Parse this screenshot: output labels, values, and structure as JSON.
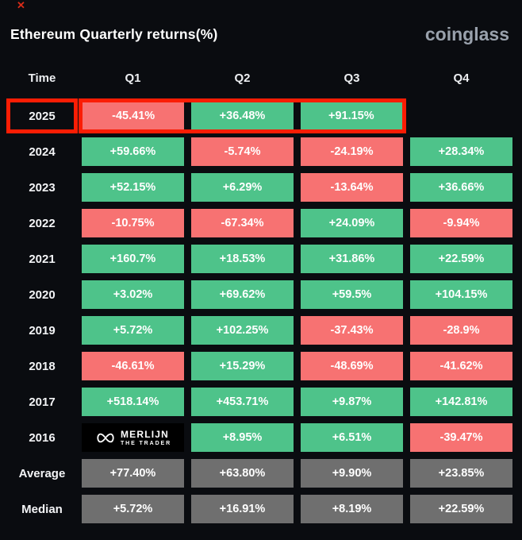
{
  "window": {
    "close_icon": "✕"
  },
  "header": {
    "title": "Ethereum Quarterly returns(%)",
    "brand": "coinglass"
  },
  "table": {
    "columns": [
      "Time",
      "Q1",
      "Q2",
      "Q3",
      "Q4"
    ],
    "rows": [
      {
        "time": "2025",
        "highlight": true,
        "cells": [
          {
            "value": "-45.41%",
            "type": "negative"
          },
          {
            "value": "+36.48%",
            "type": "positive"
          },
          {
            "value": "+91.15%",
            "type": "positive"
          },
          {
            "value": "",
            "type": "empty"
          }
        ]
      },
      {
        "time": "2024",
        "cells": [
          {
            "value": "+59.66%",
            "type": "positive"
          },
          {
            "value": "-5.74%",
            "type": "negative"
          },
          {
            "value": "-24.19%",
            "type": "negative"
          },
          {
            "value": "+28.34%",
            "type": "positive"
          }
        ]
      },
      {
        "time": "2023",
        "cells": [
          {
            "value": "+52.15%",
            "type": "positive"
          },
          {
            "value": "+6.29%",
            "type": "positive"
          },
          {
            "value": "-13.64%",
            "type": "negative"
          },
          {
            "value": "+36.66%",
            "type": "positive"
          }
        ]
      },
      {
        "time": "2022",
        "cells": [
          {
            "value": "-10.75%",
            "type": "negative"
          },
          {
            "value": "-67.34%",
            "type": "negative"
          },
          {
            "value": "+24.09%",
            "type": "positive"
          },
          {
            "value": "-9.94%",
            "type": "negative"
          }
        ]
      },
      {
        "time": "2021",
        "cells": [
          {
            "value": "+160.7%",
            "type": "positive"
          },
          {
            "value": "+18.53%",
            "type": "positive"
          },
          {
            "value": "+31.86%",
            "type": "positive"
          },
          {
            "value": "+22.59%",
            "type": "positive"
          }
        ]
      },
      {
        "time": "2020",
        "cells": [
          {
            "value": "+3.02%",
            "type": "positive"
          },
          {
            "value": "+69.62%",
            "type": "positive"
          },
          {
            "value": "+59.5%",
            "type": "positive"
          },
          {
            "value": "+104.15%",
            "type": "positive"
          }
        ]
      },
      {
        "time": "2019",
        "cells": [
          {
            "value": "+5.72%",
            "type": "positive"
          },
          {
            "value": "+102.25%",
            "type": "positive"
          },
          {
            "value": "-37.43%",
            "type": "negative"
          },
          {
            "value": "-28.9%",
            "type": "negative"
          }
        ]
      },
      {
        "time": "2018",
        "cells": [
          {
            "value": "-46.61%",
            "type": "negative"
          },
          {
            "value": "+15.29%",
            "type": "positive"
          },
          {
            "value": "-48.69%",
            "type": "negative"
          },
          {
            "value": "-41.62%",
            "type": "negative"
          }
        ]
      },
      {
        "time": "2017",
        "cells": [
          {
            "value": "+518.14%",
            "type": "positive"
          },
          {
            "value": "+453.71%",
            "type": "positive"
          },
          {
            "value": "+9.87%",
            "type": "positive"
          },
          {
            "value": "+142.81%",
            "type": "positive"
          }
        ]
      },
      {
        "time": "2016",
        "cells": [
          {
            "value": "",
            "type": "logo"
          },
          {
            "value": "+8.95%",
            "type": "positive"
          },
          {
            "value": "+6.51%",
            "type": "positive"
          },
          {
            "value": "-39.47%",
            "type": "negative"
          }
        ]
      },
      {
        "time": "Average",
        "cells": [
          {
            "value": "+77.40%",
            "type": "neutral"
          },
          {
            "value": "+63.80%",
            "type": "neutral"
          },
          {
            "value": "+9.90%",
            "type": "neutral"
          },
          {
            "value": "+23.85%",
            "type": "neutral"
          }
        ]
      },
      {
        "time": "Median",
        "cells": [
          {
            "value": "+5.72%",
            "type": "neutral"
          },
          {
            "value": "+16.91%",
            "type": "neutral"
          },
          {
            "value": "+8.19%",
            "type": "neutral"
          },
          {
            "value": "+22.59%",
            "type": "neutral"
          }
        ]
      }
    ]
  },
  "watermark": {
    "line1": "MERLIJN",
    "line2": "THE TRADER"
  },
  "colors": {
    "positive": "#4ec38a",
    "negative": "#f77272",
    "neutral": "#6f6f6f",
    "highlight": "#fb1d04",
    "background": "#0a0c10",
    "brand": "#99a1ac"
  },
  "chart_data": {
    "type": "heatmap",
    "title": "Ethereum Quarterly returns(%)",
    "columns": [
      "Q1",
      "Q2",
      "Q3",
      "Q4"
    ],
    "rows": [
      "2025",
      "2024",
      "2023",
      "2022",
      "2021",
      "2020",
      "2019",
      "2018",
      "2017",
      "2016",
      "Average",
      "Median"
    ],
    "values": [
      [
        -45.41,
        36.48,
        91.15,
        null
      ],
      [
        59.66,
        -5.74,
        -24.19,
        28.34
      ],
      [
        52.15,
        6.29,
        -13.64,
        36.66
      ],
      [
        -10.75,
        -67.34,
        24.09,
        -9.94
      ],
      [
        160.7,
        18.53,
        31.86,
        22.59
      ],
      [
        3.02,
        69.62,
        59.5,
        104.15
      ],
      [
        5.72,
        102.25,
        -37.43,
        -28.9
      ],
      [
        -46.61,
        15.29,
        -48.69,
        -41.62
      ],
      [
        518.14,
        453.71,
        9.87,
        142.81
      ],
      [
        null,
        8.95,
        6.51,
        -39.47
      ],
      [
        77.4,
        63.8,
        9.9,
        23.85
      ],
      [
        5.72,
        16.91,
        8.19,
        22.59
      ]
    ],
    "unit": "%",
    "color_coding": "green = positive return, red = negative return, gray = summary rows (Average/Median)",
    "highlighted_row": "2025",
    "legend": "none"
  }
}
